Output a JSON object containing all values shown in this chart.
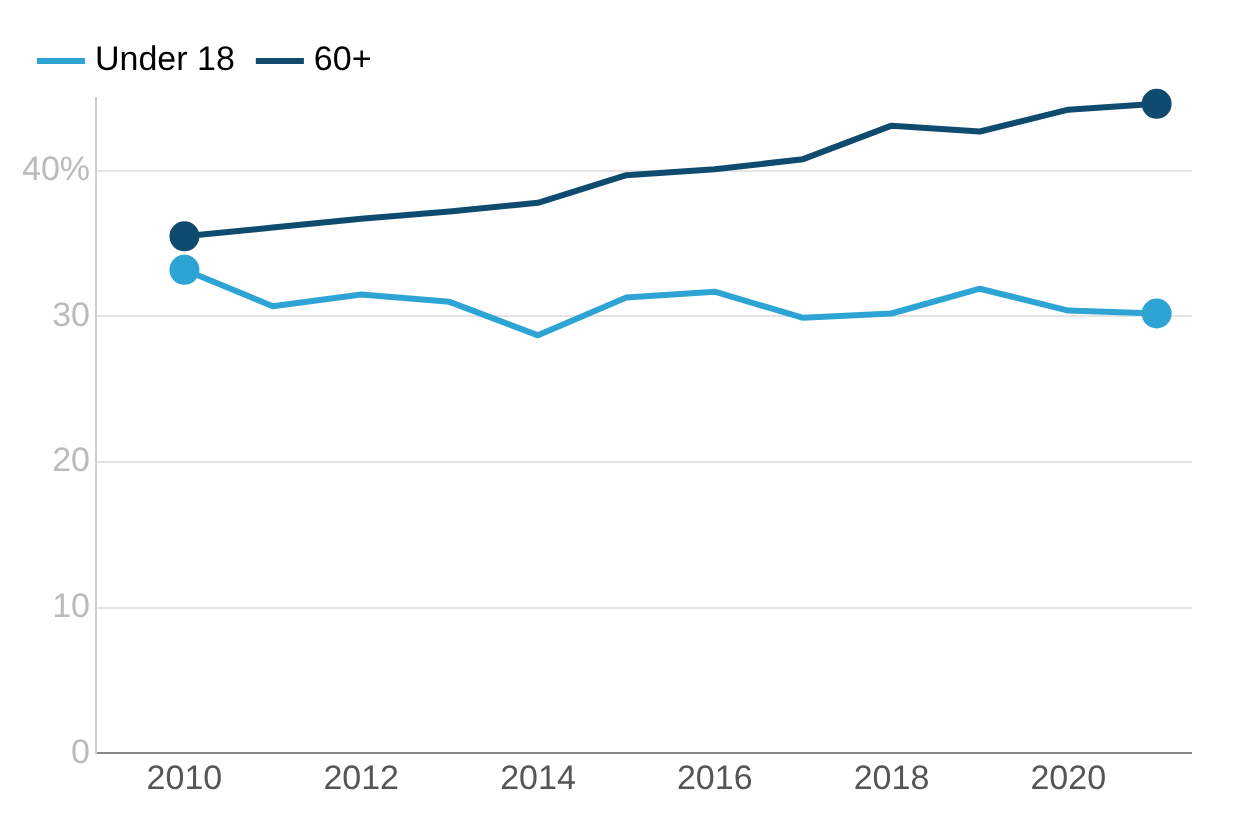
{
  "chart_data": {
    "type": "line",
    "x": [
      2010,
      2011,
      2012,
      2013,
      2014,
      2015,
      2016,
      2017,
      2018,
      2019,
      2020,
      2021
    ],
    "series": [
      {
        "name": "Under 18",
        "color": "#2ea4d4",
        "values": [
          33.2,
          30.7,
          31.5,
          31.0,
          28.7,
          31.3,
          31.7,
          29.9,
          30.2,
          31.9,
          30.4,
          30.2
        ]
      },
      {
        "name": "60+",
        "color": "#0f4b6e",
        "values": [
          35.5,
          36.1,
          36.7,
          37.2,
          37.8,
          39.7,
          40.1,
          40.8,
          43.1,
          42.7,
          44.2,
          44.6
        ]
      }
    ],
    "xlim": [
      2009,
      2021.4
    ],
    "xticks": [
      2010,
      2012,
      2014,
      2016,
      2018,
      2020
    ],
    "ylim": [
      0,
      45
    ],
    "yticks": [
      0,
      10,
      20,
      30,
      {
        "value": 40,
        "label": "40%"
      }
    ],
    "grid": "y",
    "legend": "top left",
    "line_style": "solid"
  }
}
